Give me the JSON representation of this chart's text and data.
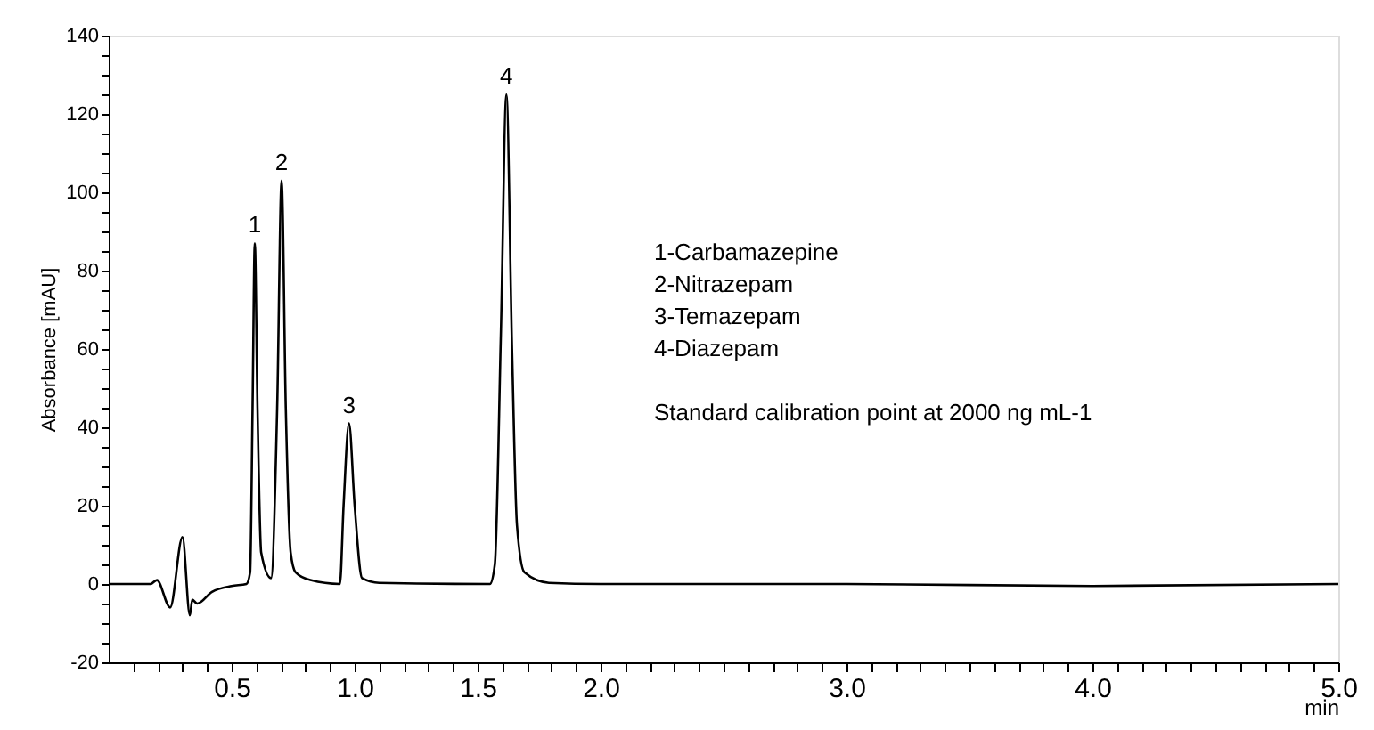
{
  "chart_data": {
    "type": "line",
    "xlabel": "min",
    "ylabel": "Absorbance [mAU]",
    "x": [
      0,
      0.17,
      0.196,
      0.25,
      0.3,
      0.33,
      0.34,
      0.36,
      0.42,
      0.5,
      0.56,
      0.575,
      0.585,
      0.594,
      0.605,
      0.62,
      0.66,
      0.685,
      0.703,
      0.72,
      0.74,
      0.76,
      0.82,
      0.94,
      0.955,
      0.977,
      1.0,
      1.03,
      1.1,
      1.55,
      1.57,
      1.595,
      1.617,
      1.64,
      1.66,
      1.69,
      1.79,
      2.0,
      3.0,
      4.0,
      5.0
    ],
    "series": [
      {
        "color": "#000000",
        "values": [
          0,
          0,
          1,
          -6,
          12,
          -8,
          -4,
          -5,
          -2,
          -0.5,
          0,
          3,
          45,
          87,
          45,
          8,
          1.5,
          45,
          103,
          45,
          8,
          3,
          1,
          0,
          20,
          41,
          20,
          1.5,
          0.3,
          0,
          5,
          65,
          125,
          60,
          15,
          3,
          0.3,
          0,
          0,
          -0.5,
          0
        ]
      }
    ],
    "xlim": [
      0,
      5
    ],
    "ylim": [
      -20,
      140
    ],
    "xticks": [
      {
        "value": 0.1,
        "label": null
      },
      {
        "value": 0.2,
        "label": null
      },
      {
        "value": 0.3,
        "label": null
      },
      {
        "value": 0.4,
        "label": null
      },
      {
        "value": 0.5,
        "label": "0.5"
      },
      {
        "value": 0.6,
        "label": null
      },
      {
        "value": 0.7,
        "label": null
      },
      {
        "value": 0.8,
        "label": null
      },
      {
        "value": 0.9,
        "label": null
      },
      {
        "value": 1.0,
        "label": "1.0"
      },
      {
        "value": 1.1,
        "label": null
      },
      {
        "value": 1.2,
        "label": null
      },
      {
        "value": 1.3,
        "label": null
      },
      {
        "value": 1.4,
        "label": null
      },
      {
        "value": 1.5,
        "label": "1.5"
      },
      {
        "value": 1.6,
        "label": null
      },
      {
        "value": 1.7,
        "label": null
      },
      {
        "value": 1.8,
        "label": null
      },
      {
        "value": 1.9,
        "label": null
      },
      {
        "value": 2.0,
        "label": "2.0"
      },
      {
        "value": 2.1,
        "label": null
      },
      {
        "value": 2.2,
        "label": null
      },
      {
        "value": 2.3,
        "label": null
      },
      {
        "value": 2.4,
        "label": null
      },
      {
        "value": 2.5,
        "label": null
      },
      {
        "value": 2.6,
        "label": null
      },
      {
        "value": 2.7,
        "label": null
      },
      {
        "value": 2.8,
        "label": null
      },
      {
        "value": 2.9,
        "label": null
      },
      {
        "value": 3.0,
        "label": "3.0"
      },
      {
        "value": 3.1,
        "label": null
      },
      {
        "value": 3.2,
        "label": null
      },
      {
        "value": 3.3,
        "label": null
      },
      {
        "value": 3.4,
        "label": null
      },
      {
        "value": 3.5,
        "label": null
      },
      {
        "value": 3.6,
        "label": null
      },
      {
        "value": 3.7,
        "label": null
      },
      {
        "value": 3.8,
        "label": null
      },
      {
        "value": 3.9,
        "label": null
      },
      {
        "value": 4.0,
        "label": "4.0"
      },
      {
        "value": 4.1,
        "label": null
      },
      {
        "value": 4.2,
        "label": null
      },
      {
        "value": 4.3,
        "label": null
      },
      {
        "value": 4.4,
        "label": null
      },
      {
        "value": 4.5,
        "label": null
      },
      {
        "value": 4.6,
        "label": null
      },
      {
        "value": 4.7,
        "label": null
      },
      {
        "value": 4.8,
        "label": null
      },
      {
        "value": 4.9,
        "label": null
      },
      {
        "value": 5.0,
        "label": "5.0"
      }
    ],
    "yticks": [
      {
        "value": -20,
        "label": "-20"
      },
      {
        "value": -15,
        "label": null
      },
      {
        "value": -10,
        "label": null
      },
      {
        "value": -5,
        "label": null
      },
      {
        "value": 0,
        "label": "0"
      },
      {
        "value": 5,
        "label": null
      },
      {
        "value": 10,
        "label": null
      },
      {
        "value": 15,
        "label": null
      },
      {
        "value": 20,
        "label": "20"
      },
      {
        "value": 25,
        "label": null
      },
      {
        "value": 30,
        "label": null
      },
      {
        "value": 35,
        "label": null
      },
      {
        "value": 40,
        "label": "40"
      },
      {
        "value": 45,
        "label": null
      },
      {
        "value": 50,
        "label": null
      },
      {
        "value": 55,
        "label": null
      },
      {
        "value": 60,
        "label": "60"
      },
      {
        "value": 65,
        "label": null
      },
      {
        "value": 70,
        "label": null
      },
      {
        "value": 75,
        "label": null
      },
      {
        "value": 80,
        "label": "80"
      },
      {
        "value": 85,
        "label": null
      },
      {
        "value": 90,
        "label": null
      },
      {
        "value": 95,
        "label": null
      },
      {
        "value": 100,
        "label": "100"
      },
      {
        "value": 105,
        "label": null
      },
      {
        "value": 110,
        "label": null
      },
      {
        "value": 115,
        "label": null
      },
      {
        "value": 120,
        "label": "120"
      },
      {
        "value": 125,
        "label": null
      },
      {
        "value": 130,
        "label": null
      },
      {
        "value": 135,
        "label": null
      },
      {
        "value": 140,
        "label": "140"
      }
    ],
    "annotations": [
      {
        "text": "1",
        "x": 0.594,
        "y": 87
      },
      {
        "text": "2",
        "x": 0.703,
        "y": 103
      },
      {
        "text": "3",
        "x": 0.977,
        "y": 41
      },
      {
        "text": "4",
        "x": 1.617,
        "y": 125
      },
      "1-Carbamazepine",
      "2-Nitrazepam",
      "3-Temazepam",
      "4-Diazepam",
      "Standard calibration point at 2000 ng mL-1"
    ],
    "grid": false,
    "marker": "none",
    "line_style": "solid"
  }
}
